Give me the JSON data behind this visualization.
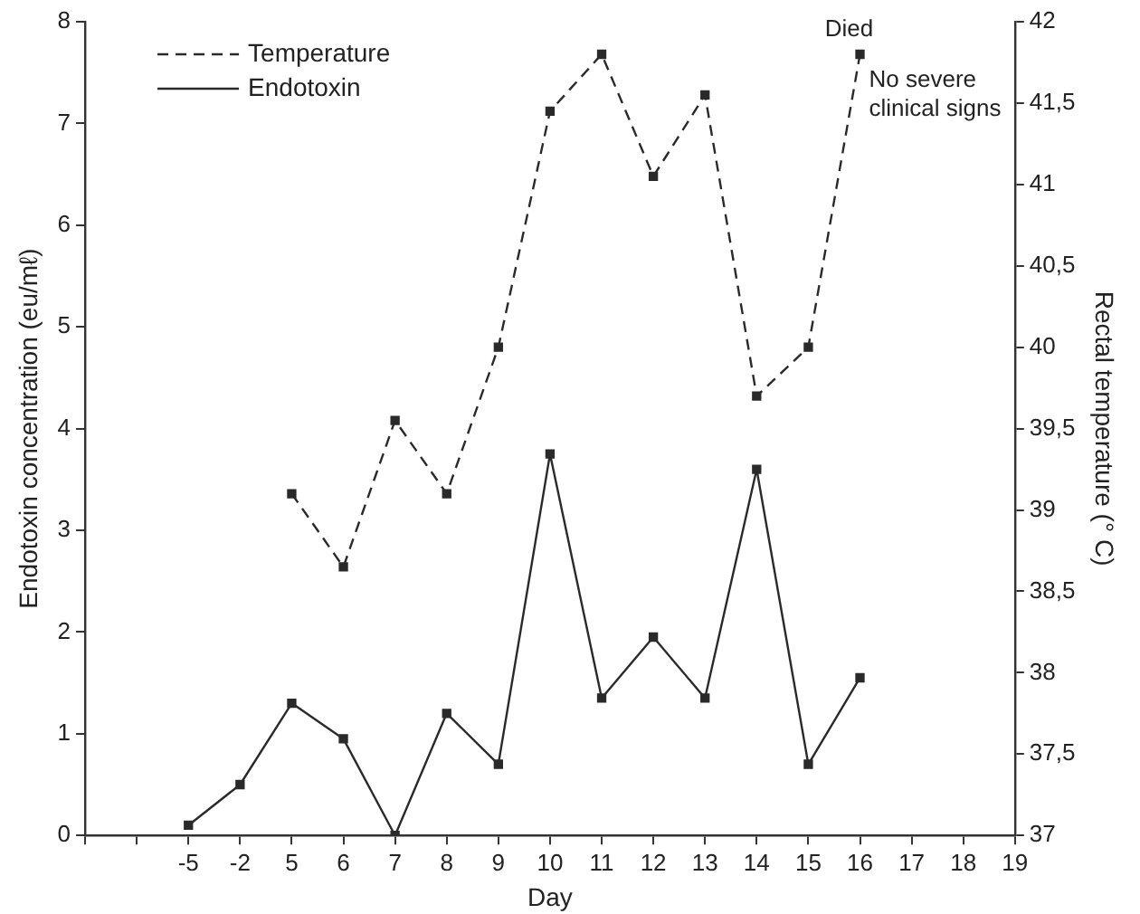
{
  "chart_data": {
    "type": "line",
    "xlabel": "Day",
    "ylabel": "Endotoxin concentration (eu/mℓ)",
    "y2label": "Rectal temperature (° C)",
    "categories": [
      null,
      null,
      "-5",
      "-2",
      "5",
      "6",
      "7",
      "8",
      "9",
      "10",
      "11",
      "12",
      "13",
      "14",
      "15",
      "16",
      "17",
      "18",
      "19"
    ],
    "series": [
      {
        "name": "Temperature",
        "color": "#2a2a2a",
        "axis": "y2",
        "line_style": "dashed",
        "values": [
          null,
          null,
          null,
          null,
          39.1,
          38.65,
          39.55,
          39.1,
          40.0,
          41.45,
          41.8,
          41.05,
          41.55,
          39.7,
          40.0,
          41.8,
          null,
          null,
          null
        ]
      },
      {
        "name": "Endotoxin",
        "color": "#2a2a2a",
        "line_style": "solid",
        "values": [
          null,
          null,
          0.1,
          0.5,
          1.3,
          0.95,
          0.0,
          1.2,
          0.7,
          3.75,
          1.35,
          1.95,
          1.35,
          3.6,
          0.7,
          1.55,
          null,
          null,
          null
        ]
      }
    ],
    "ylim": [
      0,
      8
    ],
    "yticks": [
      0,
      1,
      2,
      3,
      4,
      5,
      6,
      7,
      8
    ],
    "y2lim": [
      37,
      42
    ],
    "y2ticks": [
      37,
      {
        "value": 37.5,
        "label": "37,5"
      },
      38,
      {
        "value": 38.5,
        "label": "38,5"
      },
      39,
      {
        "value": 39.5,
        "label": "39,5"
      },
      40,
      {
        "value": 40.5,
        "label": "40,5"
      },
      41,
      {
        "value": 41.5,
        "label": "41,5"
      },
      42
    ],
    "annotations": [
      "Died",
      "No severe\nclinical signs"
    ],
    "legend": "top left",
    "marker": "square",
    "grid": false
  }
}
